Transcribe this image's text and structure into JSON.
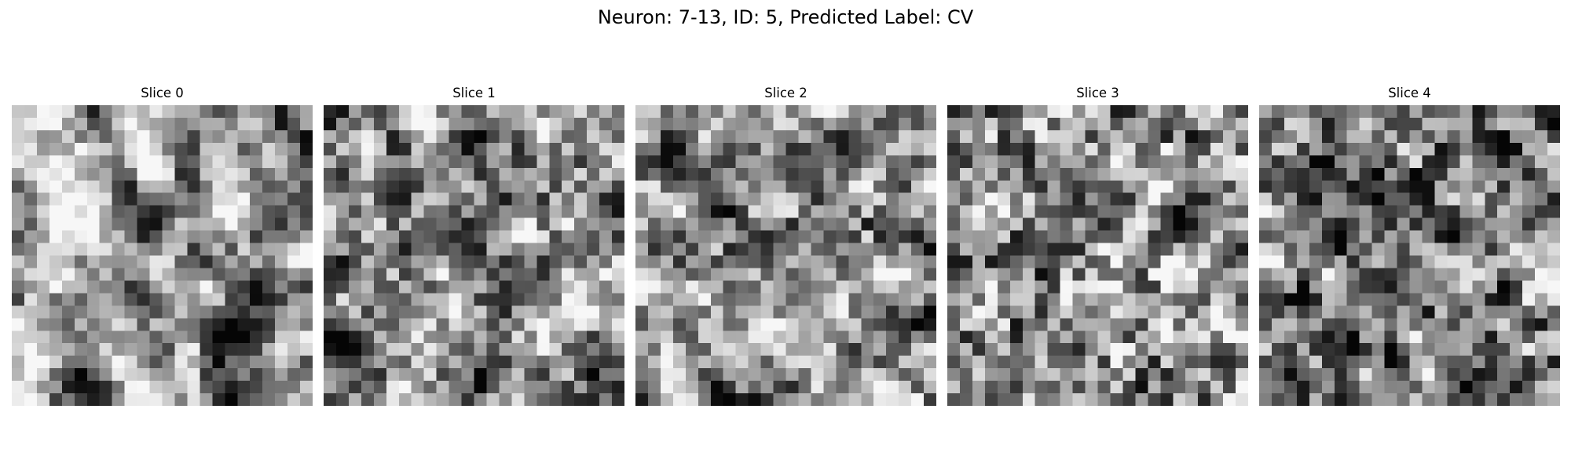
{
  "figure": {
    "title": "Neuron: 7-13, ID: 5, Predicted Label: CV",
    "colormap": "grayscale",
    "grid_size": 24
  },
  "slices": [
    {
      "title": "Slice 0"
    },
    {
      "title": "Slice 1"
    },
    {
      "title": "Slice 2"
    },
    {
      "title": "Slice 3"
    },
    {
      "title": "Slice 4"
    }
  ]
}
